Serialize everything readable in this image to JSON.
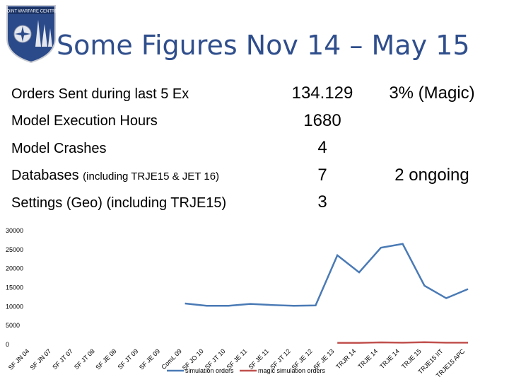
{
  "slide": {
    "logo_text": "JOINT WARFARE CENTRE",
    "title": "Some Figures Nov 14 – May 15"
  },
  "stats": [
    {
      "label": "Orders Sent during last 5 Ex",
      "label_small": "",
      "value": "134.129",
      "note": "3% (Magic)"
    },
    {
      "label": "Model Execution Hours",
      "label_small": "",
      "value": "1680",
      "note": ""
    },
    {
      "label": "Model Crashes",
      "label_small": "",
      "value": "4",
      "note": ""
    },
    {
      "label": "Databases ",
      "label_small": "(including TRJE15 & JET 16)",
      "value": "7",
      "note": "2 ongoing"
    },
    {
      "label": "Settings (Geo) (including TRJE15)",
      "label_small": "",
      "value": "3",
      "note": ""
    }
  ],
  "colors": {
    "title": "#2f4e8c",
    "series1": "#4a7ab5",
    "series2": "#c0504d",
    "logo_bg": "#2b4a8a"
  },
  "chart_data": {
    "type": "line",
    "categories": [
      "SF JN 04",
      "SF JN 07",
      "SF JT 07",
      "SF JT 08",
      "SF JE 08",
      "SF JT 09",
      "SF JE 09",
      "ComL 09",
      "SF JO 10",
      "SF JT 10",
      "SF JE 11",
      "SF JE 11",
      "SF JT 12",
      "SF JE 12",
      "SF JE 13",
      "TRJR 14",
      "TRJE 14",
      "TRJE 14",
      "TRJE 15",
      "TRJE15 IIT",
      "TRJE15 APC"
    ],
    "series": [
      {
        "name": "simulation orders",
        "values": [
          null,
          null,
          null,
          null,
          null,
          null,
          null,
          10800,
          10200,
          10200,
          10700,
          10400,
          10200,
          10300,
          23500,
          19000,
          25500,
          26500,
          15500,
          12200,
          14600
        ]
      },
      {
        "name": "magic simulation orders",
        "values": [
          null,
          null,
          null,
          null,
          null,
          null,
          null,
          null,
          null,
          null,
          null,
          null,
          null,
          null,
          450,
          450,
          550,
          500,
          600,
          500,
          500
        ]
      }
    ],
    "y_ticks": [
      "0",
      "5000",
      "10000",
      "15000",
      "20000",
      "25000",
      "30000"
    ],
    "ylim": [
      0,
      30000
    ],
    "grid": false,
    "legend": "bottom"
  }
}
